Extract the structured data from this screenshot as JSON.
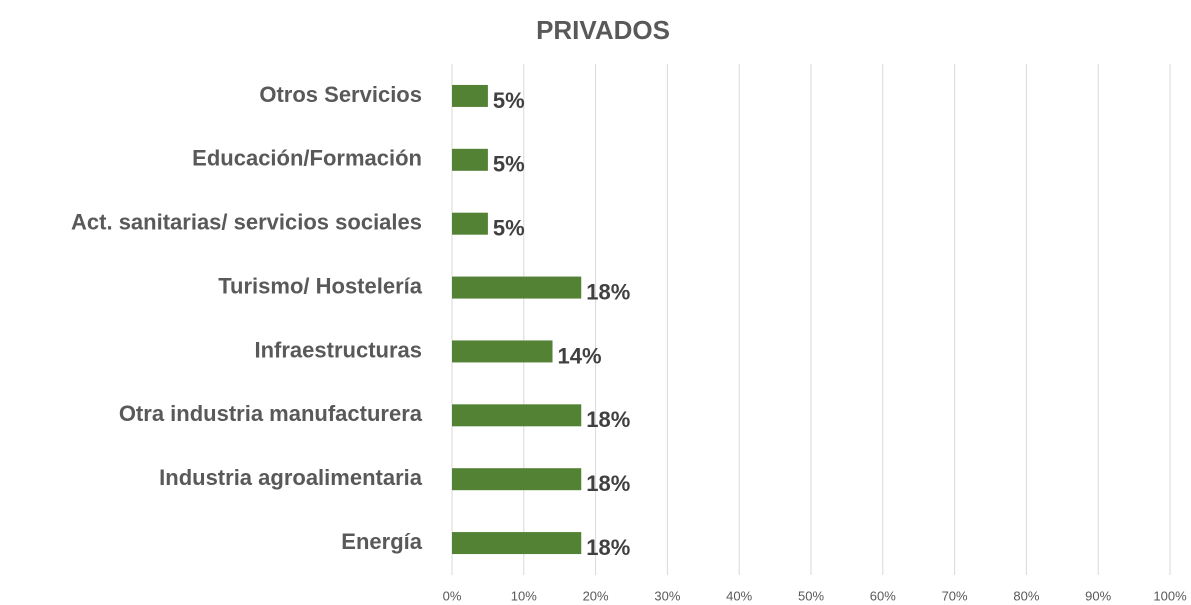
{
  "chart_data": {
    "type": "bar",
    "orientation": "horizontal",
    "title": "PRIVADOS",
    "categories": [
      "Otros Servicios",
      "Educación/Formación",
      "Act. sanitarias/ servicios sociales",
      "Turismo/ Hostelería",
      "Infraestructuras",
      "Otra industria manufacturera",
      "Industria agroalimentaria",
      "Energía"
    ],
    "values": [
      5,
      5,
      5,
      18,
      14,
      18,
      18,
      18
    ],
    "value_labels": [
      "5%",
      "5%",
      "5%",
      "18%",
      "14%",
      "18%",
      "18%",
      "18%"
    ],
    "color": "#548235",
    "xlim": [
      0,
      100
    ],
    "xticks": [
      {
        "value": 0,
        "label": "0%"
      },
      {
        "value": 10,
        "label": "10%"
      },
      {
        "value": 20,
        "label": "20%"
      },
      {
        "value": 30,
        "label": "30%"
      },
      {
        "value": 40,
        "label": "40%"
      },
      {
        "value": 50,
        "label": "50%"
      },
      {
        "value": 60,
        "label": "60%"
      },
      {
        "value": 70,
        "label": "70%"
      },
      {
        "value": 80,
        "label": "80%"
      },
      {
        "value": 90,
        "label": "90%"
      },
      {
        "value": 100,
        "label": "100%"
      }
    ],
    "grid": true
  }
}
